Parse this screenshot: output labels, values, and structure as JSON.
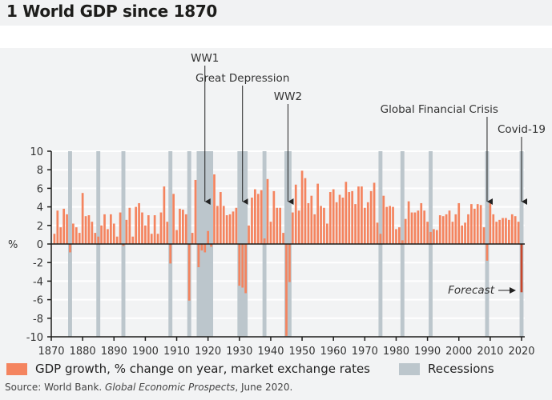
{
  "title": "1 World GDP since 1870",
  "source": {
    "prefix": "Source: World Bank. ",
    "italic": "Global Economic Prospects",
    "suffix": ", June 2020."
  },
  "colors": {
    "growth": "#f4845f",
    "forecast": "#c8462b",
    "recession": "#bcc6cc",
    "background": "#f2f3f4"
  },
  "chart_data": {
    "type": "bar",
    "title": "World GDP since 1870",
    "ylabel": "%",
    "ylim": [
      -10,
      10
    ],
    "xlim": [
      1870,
      2020
    ],
    "yticks": [
      10,
      8,
      6,
      4,
      2,
      0,
      -2,
      -4,
      -6,
      -8,
      -10
    ],
    "xticks": [
      1870,
      1880,
      1890,
      1900,
      1910,
      1920,
      1930,
      1940,
      1950,
      1960,
      1970,
      1980,
      1990,
      2000,
      2010,
      2020
    ],
    "grid": true,
    "legend_placement": "bottom",
    "series": [
      {
        "name": "GDP growth, % change on year, market exchange rates",
        "start_year": 1871,
        "values": [
          1.1,
          3.6,
          1.8,
          3.8,
          3.2,
          -0.9,
          2.2,
          1.8,
          1.2,
          5.5,
          3.0,
          3.1,
          2.4,
          1.2,
          0.8,
          2.0,
          3.2,
          1.6,
          3.2,
          2.2,
          0.8,
          3.4,
          -0.2,
          2.6,
          3.9,
          0.8,
          4.0,
          4.4,
          3.4,
          2.0,
          3.1,
          1.1,
          3.1,
          1.1,
          3.4,
          6.2,
          2.4,
          -2.1,
          5.4,
          1.5,
          3.8,
          3.7,
          3.2,
          -6.1,
          1.2,
          6.9,
          -2.5,
          -0.7,
          -0.9,
          1.4,
          -0.3,
          7.5,
          4.1,
          5.6,
          4.1,
          3.1,
          3.2,
          3.5,
          3.9,
          -4.5,
          -4.7,
          -5.3,
          2.0,
          5.0,
          5.9,
          5.4,
          5.8,
          0.6,
          7.0,
          2.4,
          5.7,
          3.9,
          3.9,
          1.2,
          -9.9,
          -4.1,
          3.4,
          6.4,
          3.6,
          7.9,
          7.1,
          4.4,
          5.2,
          3.2,
          6.5,
          4.1,
          3.9,
          2.2,
          5.6,
          5.9,
          4.5,
          5.3,
          5.0,
          6.7,
          5.6,
          5.7,
          4.3,
          6.2,
          6.2,
          3.9,
          4.5,
          5.7,
          6.6,
          2.3,
          1.1,
          5.2,
          4.0,
          4.1,
          4.0,
          1.6,
          1.8,
          0.4,
          2.7,
          4.6,
          3.4,
          3.4,
          3.6,
          4.4,
          3.6,
          2.4,
          1.3,
          1.6,
          1.5,
          3.1,
          3.0,
          3.2,
          3.6,
          2.4,
          3.2,
          4.4,
          2.0,
          2.3,
          3.2,
          4.3,
          3.8,
          4.3,
          4.2,
          1.8,
          -1.8,
          4.4,
          3.2,
          2.4,
          2.6,
          2.8,
          2.8,
          2.6,
          3.2,
          3.0,
          2.4,
          -5.2
        ]
      },
      {
        "name": "Recessions",
        "years": [
          1876,
          1885,
          1893,
          1908,
          1914,
          1917,
          1918,
          1919,
          1920,
          1921,
          1930,
          1931,
          1932,
          1938,
          1945,
          1946,
          1975,
          1982,
          1991,
          2009,
          2020
        ]
      }
    ],
    "forecast_years": [
      2020
    ],
    "annotations": [
      {
        "text": "WW1",
        "year": 1919
      },
      {
        "text": "Great Depression",
        "year": 1931
      },
      {
        "text": "WW2",
        "year": 1945.5
      },
      {
        "text": "Global Financial Crisis",
        "year": 2009
      },
      {
        "text": "Covid-19",
        "year": 2020
      },
      {
        "text": "Forecast",
        "year": 2020
      }
    ]
  }
}
